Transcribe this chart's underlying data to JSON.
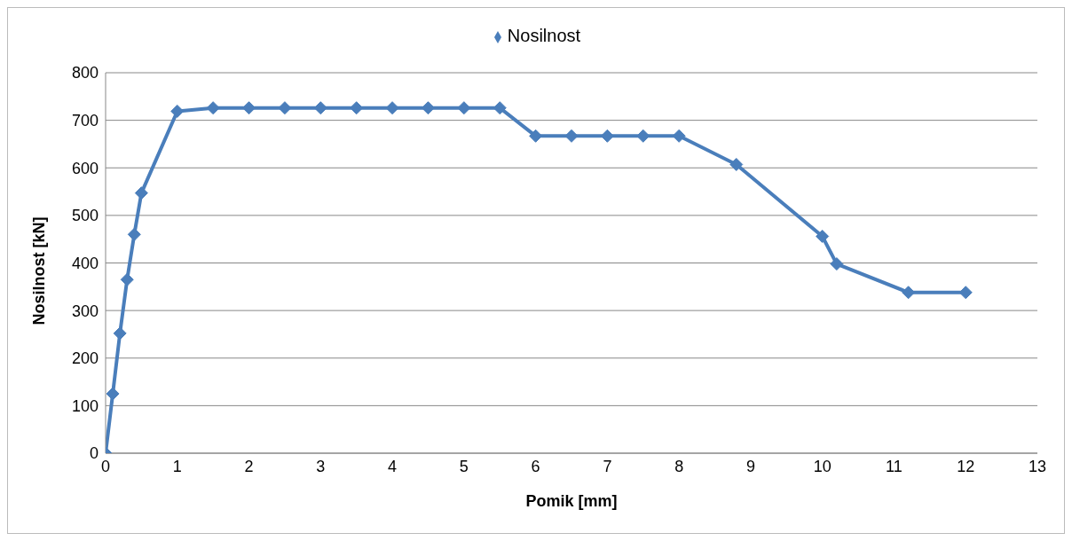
{
  "chart_data": {
    "type": "line",
    "xlabel": "Pomik [mm]",
    "ylabel": "Nosilnost [kN]",
    "x": [
      0,
      0.1,
      0.2,
      0.3,
      0.4,
      0.5,
      1,
      1.5,
      2,
      2.5,
      3,
      3.5,
      4,
      4.5,
      5,
      5.5,
      6,
      6.5,
      7,
      7.5,
      8,
      8.8,
      10,
      10.2,
      11.2,
      12
    ],
    "series": [
      {
        "name": "Nosilnost",
        "color": "#4a7ebb",
        "values": [
          0,
          125,
          252,
          365,
          460,
          547,
          719,
          726,
          726,
          726,
          726,
          726,
          726,
          726,
          726,
          726,
          667,
          667,
          667,
          667,
          667,
          607,
          456,
          398,
          338,
          338
        ]
      }
    ],
    "xlim": [
      0,
      13
    ],
    "xticks": [
      0,
      1,
      2,
      3,
      4,
      5,
      6,
      7,
      8,
      9,
      10,
      11,
      12,
      13
    ],
    "ylim": [
      0,
      800
    ],
    "yticks": [
      0,
      100,
      200,
      300,
      400,
      500,
      600,
      700,
      800
    ],
    "grid": "y",
    "legend": "top",
    "marker": "diamond",
    "line_style": "solid"
  }
}
